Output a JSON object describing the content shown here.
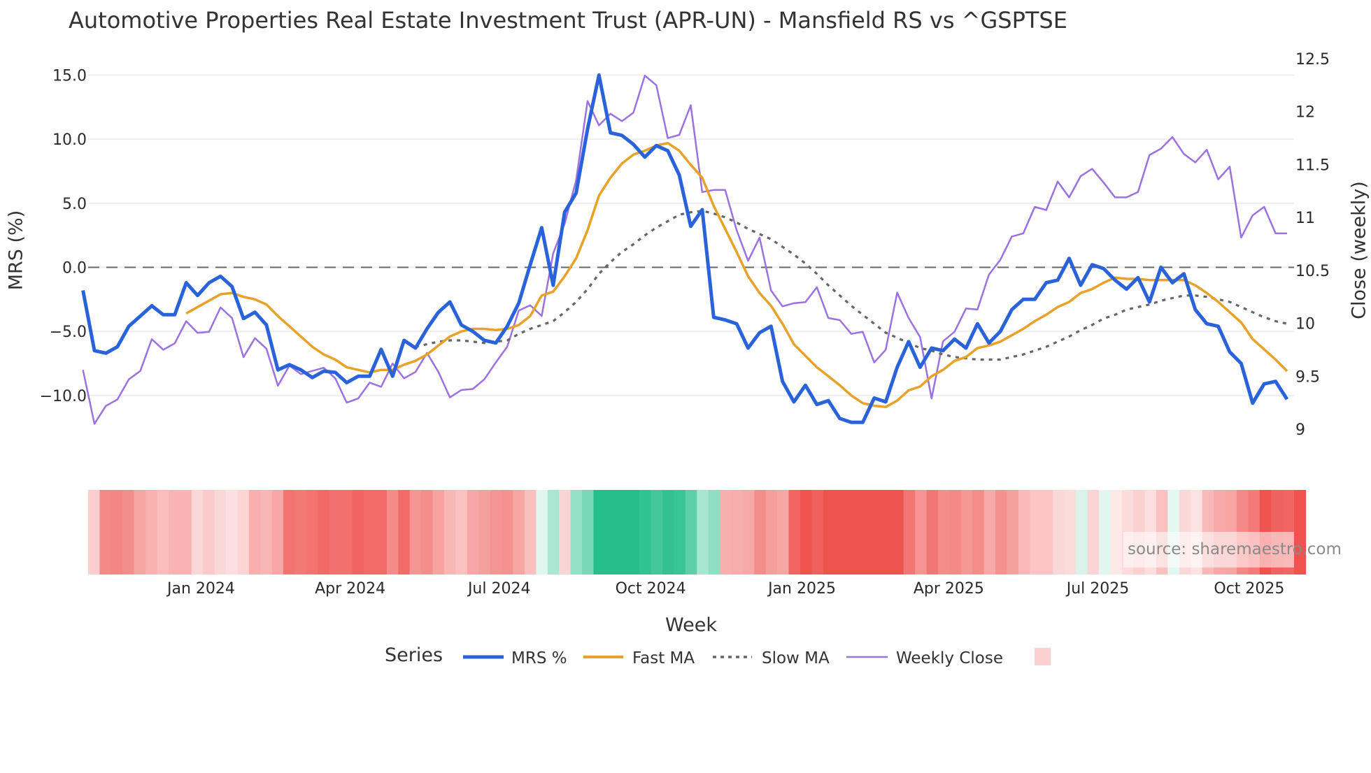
{
  "chart_data": {
    "type": "line",
    "title": "Automotive Properties Real Estate Investment Trust (APR-UN) - Mansfield RS vs ^GSPTSE",
    "xlabel": "Week",
    "ylabel_left": "MRS (%)",
    "ylabel_right": "Close (weekly)",
    "ylim_left": [
      -13.2,
      16.3
    ],
    "ylim_right": [
      9,
      12.5
    ],
    "left_ticks": [
      "15.0",
      "10.0",
      "5.0",
      "0.0",
      "−5.0",
      "−10.0"
    ],
    "left_tick_values": [
      15,
      10,
      5,
      0,
      -5,
      -10
    ],
    "right_ticks": [
      "12.5",
      "12",
      "11.5",
      "11",
      "10.5",
      "10",
      "9.5",
      "9"
    ],
    "right_tick_values": [
      12.5,
      12,
      11.5,
      11,
      10.5,
      10,
      9.5,
      9
    ],
    "x_ticks": [
      "Jan 2024",
      "Apr 2024",
      "Jul 2024",
      "Oct 2024",
      "Jan 2025",
      "Apr 2025",
      "Jul 2025",
      "Oct 2025"
    ],
    "x_tick_week_index": [
      9.3,
      22.3,
      35.3,
      48.5,
      61.7,
      74.5,
      87.5,
      100.7
    ],
    "n_weeks": 105,
    "grid": true,
    "zero_line": "dashed",
    "legend": {
      "title": "Series",
      "placement": "bottom"
    },
    "series": [
      {
        "name": "MRS %",
        "axis": "left",
        "color": "#2962d9",
        "values": [
          -1.8,
          -6.5,
          -6.7,
          -6.2,
          -4.6,
          -3.8,
          -3.0,
          -3.7,
          -3.7,
          -1.2,
          -2.2,
          -1.2,
          -0.7,
          -1.5,
          -4.0,
          -3.5,
          -4.5,
          -8.0,
          -7.6,
          -8.0,
          -8.6,
          -8.1,
          -8.2,
          -9.0,
          -8.5,
          -8.5,
          -6.4,
          -8.5,
          -5.7,
          -6.3,
          -4.8,
          -3.5,
          -2.7,
          -4.5,
          -5.0,
          -5.7,
          -5.9,
          -4.6,
          -2.8,
          0.2,
          3.1,
          -1.4,
          4.3,
          5.8,
          10.8,
          15.0,
          10.5,
          10.3,
          9.6,
          8.6,
          9.5,
          9.1,
          7.2,
          3.2,
          4.5,
          -3.9,
          -4.1,
          -4.4,
          -6.3,
          -5.1,
          -4.6,
          -8.9,
          -10.5,
          -9.2,
          -10.7,
          -10.4,
          -11.8,
          -12.1,
          -12.1,
          -10.2,
          -10.5,
          -7.8,
          -5.8,
          -7.8,
          -6.3,
          -6.5,
          -5.6,
          -6.3,
          -4.4,
          -5.9,
          -5.0,
          -3.3,
          -2.5,
          -2.5,
          -1.2,
          -1.0,
          0.7,
          -1.4,
          0.2,
          -0.1,
          -1.0,
          -1.7,
          -0.8,
          -2.7,
          0.0,
          -1.2,
          -0.5,
          -3.3,
          -4.4,
          -4.6,
          -6.6,
          -7.5,
          -10.6,
          -9.1,
          -8.9,
          -10.3
        ]
      },
      {
        "name": "Fast MA",
        "axis": "left",
        "color": "#e8a22a",
        "values": [
          -3.6,
          -3.1,
          -2.6,
          -2.1,
          -2.0,
          -2.3,
          -2.5,
          -2.9,
          -3.8,
          -4.6,
          -5.4,
          -6.2,
          -6.8,
          -7.2,
          -7.8,
          -8.0,
          -8.2,
          -8.0,
          -8.0,
          -7.6,
          -7.3,
          -6.8,
          -6.1,
          -5.4,
          -5.0,
          -4.8,
          -4.8,
          -4.9,
          -4.8,
          -4.5,
          -3.8,
          -2.2,
          -1.9,
          -0.7,
          0.7,
          2.9,
          5.6,
          7.0,
          8.1,
          8.8,
          9.1,
          9.5,
          9.7,
          9.1,
          8.0,
          7.0,
          4.8,
          3.0,
          1.2,
          -0.7,
          -2.0,
          -3.0,
          -4.4,
          -6.0,
          -6.9,
          -7.8,
          -8.5,
          -9.2,
          -10.0,
          -10.6,
          -10.8,
          -10.9,
          -10.4,
          -9.6,
          -9.3,
          -8.5,
          -8.0,
          -7.3,
          -7.0,
          -6.3,
          -6.1,
          -5.8,
          -5.3,
          -4.8,
          -4.2,
          -3.7,
          -3.1,
          -2.7,
          -2.0,
          -1.7,
          -1.2,
          -0.8,
          -0.9,
          -0.9,
          -1.0,
          -1.0,
          -1.0,
          -1.0,
          -1.4,
          -2.0,
          -2.7,
          -3.5,
          -4.3,
          -5.6,
          -6.4,
          -7.2,
          -8.1
        ]
      },
      {
        "name": "Slow MA",
        "axis": "left",
        "color": "#666666",
        "dash": "dot",
        "values": [
          -6.2,
          -6.0,
          -5.8,
          -5.7,
          -5.7,
          -5.8,
          -5.9,
          -5.8,
          -5.7,
          -5.2,
          -4.8,
          -4.5,
          -4.2,
          -3.5,
          -2.7,
          -1.7,
          -0.5,
          0.4,
          1.2,
          1.8,
          2.5,
          3.1,
          3.6,
          4.1,
          4.3,
          4.4,
          4.2,
          3.9,
          3.5,
          3.0,
          2.6,
          2.2,
          1.6,
          1.0,
          0.3,
          -0.5,
          -1.4,
          -2.2,
          -3.0,
          -3.7,
          -4.4,
          -5.1,
          -5.5,
          -5.9,
          -6.3,
          -6.5,
          -6.8,
          -7.0,
          -7.1,
          -7.2,
          -7.2,
          -7.2,
          -7.0,
          -6.8,
          -6.5,
          -6.2,
          -5.8,
          -5.4,
          -4.9,
          -4.5,
          -4.0,
          -3.7,
          -3.3,
          -3.1,
          -2.9,
          -2.6,
          -2.4,
          -2.2,
          -2.2,
          -2.3,
          -2.5,
          -2.7,
          -3.1,
          -3.5,
          -3.9,
          -4.2,
          -4.4
        ]
      },
      {
        "name": "Weekly Close",
        "axis": "right",
        "color": "#9b72e0",
        "values": [
          9.56,
          9.05,
          9.22,
          9.28,
          9.47,
          9.55,
          9.85,
          9.75,
          9.81,
          10.02,
          9.91,
          9.92,
          10.15,
          10.05,
          9.68,
          9.86,
          9.76,
          9.41,
          9.6,
          9.52,
          9.55,
          9.58,
          9.48,
          9.25,
          9.29,
          9.44,
          9.4,
          9.62,
          9.48,
          9.54,
          9.72,
          9.54,
          9.3,
          9.37,
          9.38,
          9.47,
          9.63,
          9.78,
          10.12,
          10.17,
          10.07,
          10.66,
          10.94,
          11.35,
          12.1,
          11.87,
          11.98,
          11.91,
          11.99,
          12.34,
          12.25,
          11.75,
          11.78,
          12.06,
          11.24,
          11.26,
          11.26,
          10.88,
          10.59,
          10.81,
          10.31,
          10.16,
          10.19,
          10.2,
          10.34,
          10.05,
          10.03,
          9.9,
          9.92,
          9.63,
          9.75,
          10.29,
          10.05,
          9.87,
          9.29,
          9.83,
          9.92,
          10.14,
          10.13,
          10.46,
          10.6,
          10.82,
          10.85,
          11.1,
          11.07,
          11.34,
          11.19,
          11.39,
          11.46,
          11.33,
          11.19,
          11.19,
          11.24,
          11.59,
          11.65,
          11.76,
          11.6,
          11.52,
          11.64,
          11.36,
          11.48,
          10.81,
          11.02,
          11.1,
          10.85,
          10.85
        ]
      }
    ],
    "heatmap": {
      "source_series": "MRS %",
      "colors": {
        "negative": "#ef5350",
        "positive": "#26bf8c"
      }
    }
  },
  "watermark": "source: sharemaestro.com"
}
